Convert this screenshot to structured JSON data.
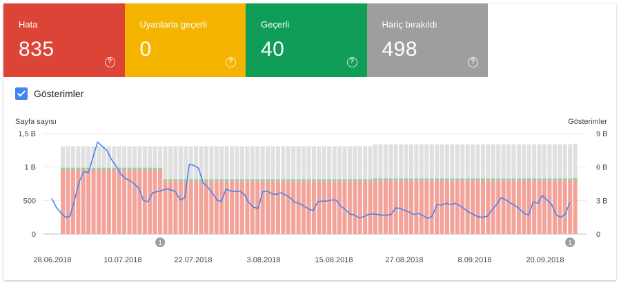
{
  "tiles": [
    {
      "label": "Hata",
      "value": "835",
      "color": "#db4437"
    },
    {
      "label": "Uyarılarla geçerli",
      "value": "0",
      "color": "#f4b400"
    },
    {
      "label": "Geçerli",
      "value": "40",
      "color": "#0f9d58"
    },
    {
      "label": "Hariç bırakıldı",
      "value": "498",
      "color": "#9e9e9e"
    }
  ],
  "help_glyph": "?",
  "checkbox": {
    "label": "Gösterimler",
    "checked": true
  },
  "chart_data": {
    "type": "bar",
    "left_axis_title": "Sayfa sayısı",
    "right_axis_title": "Gösterimler",
    "left_ticks": [
      "0",
      "500",
      "1 B",
      "1,5 B"
    ],
    "right_ticks": [
      "0",
      "3 B",
      "6 B",
      "9 B"
    ],
    "ylim_left": [
      0,
      1500
    ],
    "ylim_right": [
      0,
      9000
    ],
    "x_labels": [
      "28.06.2018",
      "10.07.2018",
      "22.07.2018",
      "3.08.2018",
      "15.08.2018",
      "27.08.2018",
      "8.09.2018",
      "20.09.2018"
    ],
    "annotation_label": "1",
    "annotations": [
      19,
      99
    ],
    "colors": {
      "error": "#f4a39a",
      "warning": "#f8e0a0",
      "valid": "#8fcfa0",
      "excluded": "#e0e0e0",
      "line": "#4285f4"
    },
    "series": [
      {
        "name": "Hata",
        "values": [
          960,
          960,
          960,
          960,
          960,
          960,
          960,
          960,
          960,
          960,
          960,
          960,
          960,
          960,
          960,
          960,
          960,
          960,
          960,
          958,
          790,
          790,
          790,
          790,
          790,
          790,
          790,
          790,
          790,
          790,
          790,
          790,
          790,
          790,
          790,
          790,
          790,
          790,
          790,
          790,
          790,
          790,
          790,
          790,
          790,
          790,
          790,
          790,
          790,
          790,
          790,
          790,
          790,
          790,
          790,
          790,
          790,
          790,
          790,
          790,
          790,
          800,
          800,
          800,
          800,
          800,
          800,
          800,
          800,
          800,
          800,
          800,
          800,
          800,
          800,
          800,
          800,
          800,
          800,
          800,
          800,
          800,
          800,
          800,
          800,
          800,
          800,
          800,
          800,
          800,
          800,
          800,
          800,
          800,
          800,
          800,
          800,
          800,
          800,
          800,
          810
        ]
      },
      {
        "name": "Geçerli",
        "values": [
          30,
          30,
          30,
          30,
          30,
          30,
          30,
          30,
          30,
          30,
          30,
          30,
          30,
          30,
          30,
          30,
          30,
          30,
          30,
          30,
          30,
          30,
          30,
          30,
          30,
          30,
          30,
          30,
          30,
          30,
          30,
          30,
          30,
          30,
          30,
          30,
          30,
          30,
          30,
          30,
          30,
          30,
          30,
          30,
          30,
          30,
          30,
          30,
          30,
          30,
          30,
          30,
          30,
          30,
          30,
          30,
          30,
          30,
          30,
          30,
          30,
          30,
          30,
          30,
          30,
          30,
          30,
          30,
          30,
          30,
          30,
          30,
          30,
          30,
          30,
          30,
          30,
          30,
          30,
          30,
          30,
          30,
          30,
          30,
          30,
          30,
          30,
          30,
          30,
          30,
          30,
          30,
          30,
          30,
          30,
          30,
          30,
          30,
          30,
          30,
          30
        ]
      },
      {
        "name": "Hariç bırakıldı",
        "values": [
          320,
          320,
          320,
          320,
          320,
          320,
          320,
          320,
          320,
          320,
          320,
          320,
          320,
          320,
          320,
          320,
          320,
          320,
          320,
          320,
          490,
          490,
          490,
          490,
          490,
          490,
          490,
          490,
          490,
          490,
          490,
          490,
          490,
          490,
          490,
          490,
          490,
          490,
          490,
          490,
          490,
          490,
          490,
          490,
          490,
          490,
          490,
          490,
          490,
          490,
          490,
          490,
          490,
          490,
          490,
          490,
          490,
          490,
          490,
          490,
          490,
          510,
          510,
          510,
          510,
          510,
          510,
          510,
          510,
          510,
          510,
          510,
          510,
          510,
          510,
          510,
          510,
          510,
          510,
          510,
          510,
          510,
          510,
          510,
          510,
          510,
          510,
          510,
          510,
          510,
          510,
          510,
          510,
          510,
          510,
          510,
          510,
          510,
          510,
          510,
          510
        ]
      },
      {
        "name": "Gösterimler",
        "values": [
          3200,
          2400,
          1900,
          1500,
          1600,
          3100,
          4700,
          5600,
          5500,
          6900,
          8250,
          7850,
          7500,
          6700,
          6100,
          5400,
          5000,
          4800,
          4500,
          4100,
          3000,
          2900,
          3700,
          3800,
          3900,
          4050,
          3950,
          3800,
          3050,
          3250,
          6250,
          6150,
          5900,
          4600,
          4200,
          3700,
          3050,
          2900,
          4050,
          3850,
          3800,
          3850,
          3550,
          2800,
          2400,
          2300,
          3800,
          3850,
          3600,
          3550,
          3700,
          3500,
          3250,
          2850,
          2750,
          2500,
          2250,
          2100,
          2900,
          2950,
          2950,
          3050,
          3050,
          2500,
          2200,
          1800,
          1700,
          1450,
          1550,
          1750,
          1800,
          1750,
          1700,
          1700,
          1750,
          2350,
          2300,
          2100,
          1950,
          1750,
          1850,
          1650,
          1400,
          1600,
          2650,
          2600,
          2750,
          2650,
          2750,
          2550,
          2250,
          1950,
          1750,
          1550,
          1500,
          1600,
          2150,
          2650,
          3250,
          3050,
          2800,
          2550,
          2250,
          1850,
          1700,
          2900,
          2750,
          3450,
          3050,
          2650,
          1700,
          1500,
          1800,
          2850
        ]
      }
    ]
  }
}
